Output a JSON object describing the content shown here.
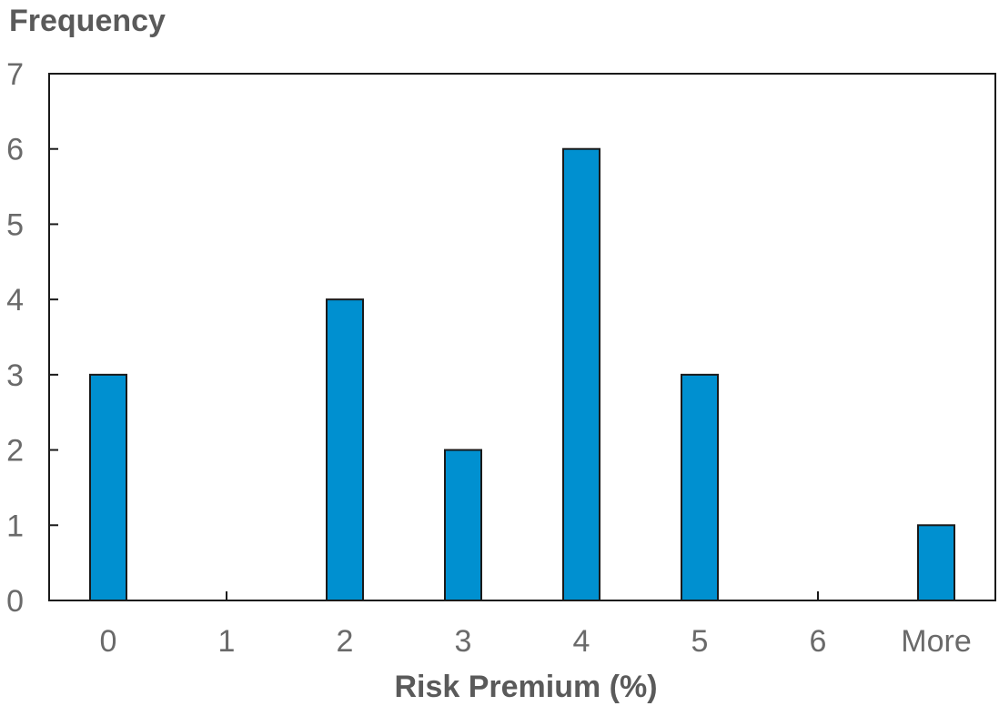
{
  "chart_data": {
    "type": "bar",
    "title": "",
    "ylabel": "Frequency",
    "xlabel": "Risk Premium (%)",
    "categories": [
      "0",
      "1",
      "2",
      "3",
      "4",
      "5",
      "6",
      "More"
    ],
    "values": [
      3,
      0,
      4,
      2,
      6,
      3,
      0,
      1
    ],
    "ylim": [
      0,
      7
    ],
    "yticks": [
      "0",
      "1",
      "2",
      "3",
      "4",
      "5",
      "6",
      "7"
    ],
    "bar_color": "#0090D0",
    "bar_edge_color": "#1a1a1a",
    "grid": false,
    "legend": "none"
  }
}
